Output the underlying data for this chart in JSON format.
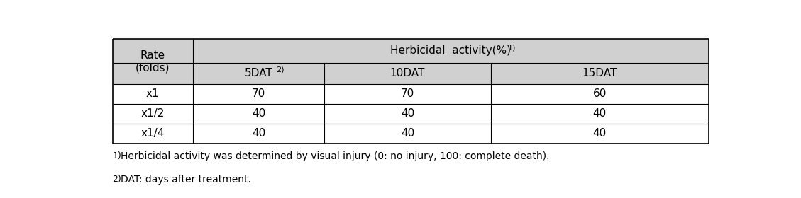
{
  "header_rate": "Rate\n(folds)",
  "header_main_text": "Herbicidal  activity(%)",
  "header_main_super": "1)",
  "col_headers": [
    "5DAT",
    "10DAT",
    "15DAT"
  ],
  "col_header_supers": [
    "2)",
    "",
    ""
  ],
  "rows": [
    [
      "x1",
      "70",
      "70",
      "60"
    ],
    [
      "x1/2",
      "40",
      "40",
      "40"
    ],
    [
      "x1/4",
      "40",
      "40",
      "40"
    ]
  ],
  "footnote1_super": "1)",
  "footnote1_text": "Herbicidal activity was determined by visual injury (0: no injury, 100: complete death).",
  "footnote2_super": "2)",
  "footnote2_text": "DAT: days after treatment.",
  "header_bg": "#c0c0c0",
  "subheader_bg": "#d0d0d0",
  "data_bg": "#ffffff",
  "line_color": "#000000",
  "text_color": "#000000",
  "font_size": 11,
  "footnote_font_size": 10
}
